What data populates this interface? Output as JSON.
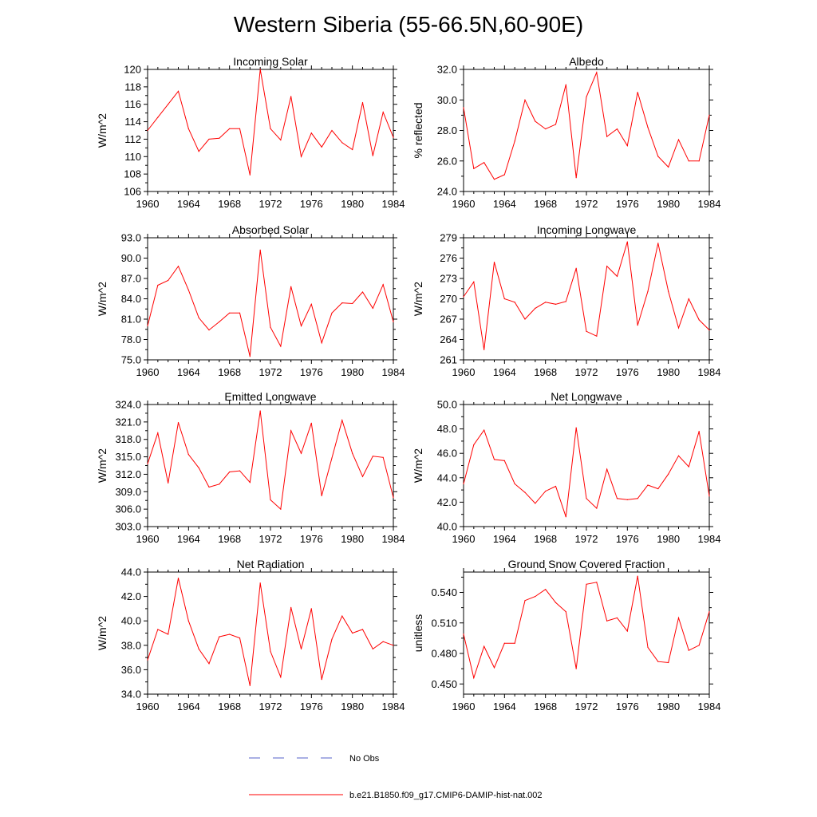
{
  "figure": {
    "title": "Western Siberia (55-66.5N,60-90E)",
    "line_color": "#ff0000",
    "obs_color": "#5560c8"
  },
  "legend": {
    "obs_label": "No Obs",
    "model_label": "b.e21.B1850.f09_g17.CMIP6-DAMIP-hist-nat.002"
  },
  "chart_data": [
    {
      "type": "line",
      "title": "Incoming Solar",
      "ylabel": "W/m^2",
      "xlim": [
        1960,
        1984
      ],
      "ylim": [
        106,
        120
      ],
      "yticks": [
        "106",
        "108",
        "110",
        "112",
        "114",
        "116",
        "118",
        "120"
      ],
      "xticks": [
        "1960",
        "1964",
        "1968",
        "1972",
        "1976",
        "1980",
        "1984"
      ],
      "x": [
        1960,
        1961,
        1962,
        1963,
        1964,
        1965,
        1966,
        1967,
        1968,
        1969,
        1970,
        1971,
        1972,
        1973,
        1974,
        1975,
        1976,
        1977,
        1978,
        1979,
        1980,
        1981,
        1982,
        1983,
        1984
      ],
      "values": [
        113.0,
        114.5,
        116.0,
        117.5,
        113.2,
        110.6,
        112.0,
        112.1,
        113.2,
        113.2,
        107.9,
        120.0,
        113.2,
        111.9,
        116.9,
        110.0,
        112.7,
        111.1,
        113.0,
        111.6,
        110.8,
        116.2,
        110.1,
        115.1,
        112.2
      ]
    },
    {
      "type": "line",
      "title": "Albedo",
      "ylabel": "% reflected",
      "xlim": [
        1960,
        1984
      ],
      "ylim": [
        24,
        32
      ],
      "yticks": [
        "24.0",
        "26.0",
        "28.0",
        "30.0",
        "32.0"
      ],
      "xticks": [
        "1960",
        "1964",
        "1968",
        "1972",
        "1976",
        "1980",
        "1984"
      ],
      "x": [
        1960,
        1961,
        1962,
        1963,
        1964,
        1965,
        1966,
        1967,
        1968,
        1969,
        1970,
        1971,
        1972,
        1973,
        1974,
        1975,
        1976,
        1977,
        1978,
        1979,
        1980,
        1981,
        1982,
        1983,
        1984
      ],
      "values": [
        29.5,
        25.5,
        25.9,
        24.8,
        25.1,
        27.3,
        30.0,
        28.6,
        28.1,
        28.4,
        31.0,
        24.9,
        30.2,
        31.8,
        27.6,
        28.1,
        27.0,
        30.5,
        28.2,
        26.3,
        25.6,
        27.4,
        26.0,
        26.0,
        29.0
      ]
    },
    {
      "type": "line",
      "title": "Absorbed Solar",
      "ylabel": "W/m^2",
      "xlim": [
        1960,
        1984
      ],
      "ylim": [
        75,
        93
      ],
      "yticks": [
        "75.0",
        "78.0",
        "81.0",
        "84.0",
        "87.0",
        "90.0",
        "93.0"
      ],
      "xticks": [
        "1960",
        "1964",
        "1968",
        "1972",
        "1976",
        "1980",
        "1984"
      ],
      "x": [
        1960,
        1961,
        1962,
        1963,
        1964,
        1965,
        1966,
        1967,
        1968,
        1969,
        1970,
        1971,
        1972,
        1973,
        1974,
        1975,
        1976,
        1977,
        1978,
        1979,
        1980,
        1981,
        1982,
        1983,
        1984
      ],
      "values": [
        80.0,
        86.0,
        86.7,
        88.8,
        85.3,
        81.2,
        79.4,
        80.6,
        81.9,
        81.9,
        75.5,
        91.2,
        79.8,
        77.0,
        85.8,
        80.0,
        83.2,
        77.5,
        81.9,
        83.4,
        83.3,
        85.0,
        82.6,
        86.1,
        80.6
      ]
    },
    {
      "type": "line",
      "title": "Incoming Longwave",
      "ylabel": "W/m^2",
      "xlim": [
        1960,
        1984
      ],
      "ylim": [
        261,
        279
      ],
      "yticks": [
        "261",
        "264",
        "267",
        "270",
        "273",
        "276",
        "279"
      ],
      "xticks": [
        "1960",
        "1964",
        "1968",
        "1972",
        "1976",
        "1980",
        "1984"
      ],
      "x": [
        1960,
        1961,
        1962,
        1963,
        1964,
        1965,
        1966,
        1967,
        1968,
        1969,
        1970,
        1971,
        1972,
        1973,
        1974,
        1975,
        1976,
        1977,
        1978,
        1979,
        1980,
        1981,
        1982,
        1983,
        1984
      ],
      "values": [
        270.3,
        272.5,
        262.5,
        275.4,
        270.0,
        269.5,
        267.0,
        268.6,
        269.5,
        269.2,
        269.6,
        274.5,
        265.2,
        264.5,
        274.8,
        273.3,
        278.4,
        266.1,
        271.1,
        278.2,
        271.1,
        265.7,
        270.0,
        266.9,
        265.4
      ]
    },
    {
      "type": "line",
      "title": "Emitted Longwave",
      "ylabel": "W/m^2",
      "xlim": [
        1960,
        1984
      ],
      "ylim": [
        303,
        324
      ],
      "yticks": [
        "303.0",
        "306.0",
        "309.0",
        "312.0",
        "315.0",
        "318.0",
        "321.0",
        "324.0"
      ],
      "xticks": [
        "1960",
        "1964",
        "1968",
        "1972",
        "1976",
        "1980",
        "1984"
      ],
      "x": [
        1960,
        1961,
        1962,
        1963,
        1964,
        1965,
        1966,
        1967,
        1968,
        1969,
        1970,
        1971,
        1972,
        1973,
        1974,
        1975,
        1976,
        1977,
        1978,
        1979,
        1980,
        1981,
        1982,
        1983,
        1984
      ],
      "values": [
        313.8,
        319.1,
        310.5,
        320.9,
        315.4,
        313.1,
        309.8,
        310.3,
        312.4,
        312.6,
        310.6,
        322.9,
        307.6,
        306.0,
        319.5,
        315.6,
        320.8,
        308.3,
        314.8,
        321.3,
        315.6,
        311.6,
        315.1,
        314.9,
        308.0
      ]
    },
    {
      "type": "line",
      "title": "Net Longwave",
      "ylabel": "W/m^2",
      "xlim": [
        1960,
        1984
      ],
      "ylim": [
        40,
        50
      ],
      "yticks": [
        "40.0",
        "42.0",
        "44.0",
        "46.0",
        "48.0",
        "50.0"
      ],
      "xticks": [
        "1960",
        "1964",
        "1968",
        "1972",
        "1976",
        "1980",
        "1984"
      ],
      "x": [
        1960,
        1961,
        1962,
        1963,
        1964,
        1965,
        1966,
        1967,
        1968,
        1969,
        1970,
        1971,
        1972,
        1973,
        1974,
        1975,
        1976,
        1977,
        1978,
        1979,
        1980,
        1981,
        1982,
        1983,
        1984
      ],
      "values": [
        43.5,
        46.7,
        47.9,
        45.5,
        45.4,
        43.5,
        42.8,
        41.9,
        42.9,
        43.3,
        40.8,
        48.1,
        42.3,
        41.5,
        44.7,
        42.3,
        42.2,
        42.3,
        43.4,
        43.1,
        44.3,
        45.8,
        44.9,
        47.8,
        42.5
      ]
    },
    {
      "type": "line",
      "title": "Net Radiation",
      "ylabel": "W/m^2",
      "xlim": [
        1960,
        1984
      ],
      "ylim": [
        34,
        44
      ],
      "yticks": [
        "34.0",
        "36.0",
        "38.0",
        "40.0",
        "42.0",
        "44.0"
      ],
      "xticks": [
        "1960",
        "1964",
        "1968",
        "1972",
        "1976",
        "1980",
        "1984"
      ],
      "x": [
        1960,
        1961,
        1962,
        1963,
        1964,
        1965,
        1966,
        1967,
        1968,
        1969,
        1970,
        1971,
        1972,
        1973,
        1974,
        1975,
        1976,
        1977,
        1978,
        1979,
        1980,
        1981,
        1982,
        1983,
        1984
      ],
      "values": [
        36.8,
        39.3,
        38.9,
        43.5,
        40.0,
        37.7,
        36.5,
        38.7,
        38.9,
        38.6,
        34.7,
        43.1,
        37.5,
        35.4,
        41.1,
        37.7,
        41.0,
        35.2,
        38.5,
        40.4,
        39.0,
        39.3,
        37.7,
        38.3,
        38.0
      ]
    },
    {
      "type": "line",
      "title": "Ground Snow Covered Fraction",
      "ylabel": "unitless",
      "xlim": [
        1960,
        1984
      ],
      "ylim": [
        0.44,
        0.56
      ],
      "yticks": [
        "0.450",
        "0.480",
        "0.510",
        "0.540"
      ],
      "xticks": [
        "1960",
        "1964",
        "1968",
        "1972",
        "1976",
        "1980",
        "1984"
      ],
      "x": [
        1960,
        1961,
        1962,
        1963,
        1964,
        1965,
        1966,
        1967,
        1968,
        1969,
        1970,
        1971,
        1972,
        1973,
        1974,
        1975,
        1976,
        1977,
        1978,
        1979,
        1980,
        1981,
        1982,
        1983,
        1984
      ],
      "values": [
        0.499,
        0.456,
        0.487,
        0.466,
        0.49,
        0.49,
        0.532,
        0.536,
        0.543,
        0.53,
        0.521,
        0.465,
        0.548,
        0.55,
        0.512,
        0.515,
        0.502,
        0.556,
        0.486,
        0.472,
        0.471,
        0.515,
        0.483,
        0.488,
        0.521
      ]
    }
  ]
}
